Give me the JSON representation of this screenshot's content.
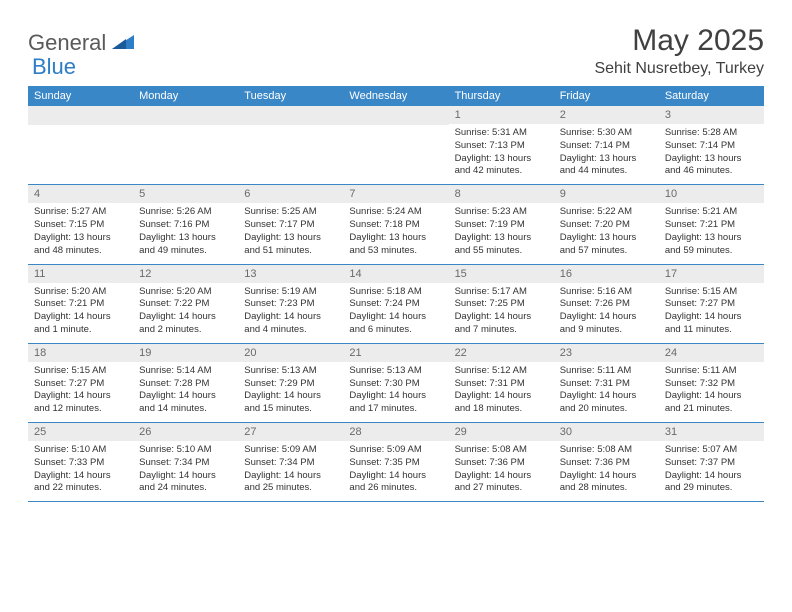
{
  "brand": {
    "part1": "General",
    "part2": "Blue"
  },
  "title": "May 2025",
  "location": "Sehit Nusretbey, Turkey",
  "colors": {
    "header_bg": "#3a87c8",
    "header_text": "#ffffff",
    "daynum_bg": "#ececec",
    "daynum_text": "#6a6a6a",
    "body_text": "#333333",
    "border": "#3a87c8",
    "logo_gray": "#5a5a5a",
    "logo_blue": "#2d7dc7"
  },
  "weekdays": [
    "Sunday",
    "Monday",
    "Tuesday",
    "Wednesday",
    "Thursday",
    "Friday",
    "Saturday"
  ],
  "weeks": [
    [
      null,
      null,
      null,
      null,
      {
        "n": "1",
        "sr": "5:31 AM",
        "ss": "7:13 PM",
        "dl": "13 hours and 42 minutes."
      },
      {
        "n": "2",
        "sr": "5:30 AM",
        "ss": "7:14 PM",
        "dl": "13 hours and 44 minutes."
      },
      {
        "n": "3",
        "sr": "5:28 AM",
        "ss": "7:14 PM",
        "dl": "13 hours and 46 minutes."
      }
    ],
    [
      {
        "n": "4",
        "sr": "5:27 AM",
        "ss": "7:15 PM",
        "dl": "13 hours and 48 minutes."
      },
      {
        "n": "5",
        "sr": "5:26 AM",
        "ss": "7:16 PM",
        "dl": "13 hours and 49 minutes."
      },
      {
        "n": "6",
        "sr": "5:25 AM",
        "ss": "7:17 PM",
        "dl": "13 hours and 51 minutes."
      },
      {
        "n": "7",
        "sr": "5:24 AM",
        "ss": "7:18 PM",
        "dl": "13 hours and 53 minutes."
      },
      {
        "n": "8",
        "sr": "5:23 AM",
        "ss": "7:19 PM",
        "dl": "13 hours and 55 minutes."
      },
      {
        "n": "9",
        "sr": "5:22 AM",
        "ss": "7:20 PM",
        "dl": "13 hours and 57 minutes."
      },
      {
        "n": "10",
        "sr": "5:21 AM",
        "ss": "7:21 PM",
        "dl": "13 hours and 59 minutes."
      }
    ],
    [
      {
        "n": "11",
        "sr": "5:20 AM",
        "ss": "7:21 PM",
        "dl": "14 hours and 1 minute."
      },
      {
        "n": "12",
        "sr": "5:20 AM",
        "ss": "7:22 PM",
        "dl": "14 hours and 2 minutes."
      },
      {
        "n": "13",
        "sr": "5:19 AM",
        "ss": "7:23 PM",
        "dl": "14 hours and 4 minutes."
      },
      {
        "n": "14",
        "sr": "5:18 AM",
        "ss": "7:24 PM",
        "dl": "14 hours and 6 minutes."
      },
      {
        "n": "15",
        "sr": "5:17 AM",
        "ss": "7:25 PM",
        "dl": "14 hours and 7 minutes."
      },
      {
        "n": "16",
        "sr": "5:16 AM",
        "ss": "7:26 PM",
        "dl": "14 hours and 9 minutes."
      },
      {
        "n": "17",
        "sr": "5:15 AM",
        "ss": "7:27 PM",
        "dl": "14 hours and 11 minutes."
      }
    ],
    [
      {
        "n": "18",
        "sr": "5:15 AM",
        "ss": "7:27 PM",
        "dl": "14 hours and 12 minutes."
      },
      {
        "n": "19",
        "sr": "5:14 AM",
        "ss": "7:28 PM",
        "dl": "14 hours and 14 minutes."
      },
      {
        "n": "20",
        "sr": "5:13 AM",
        "ss": "7:29 PM",
        "dl": "14 hours and 15 minutes."
      },
      {
        "n": "21",
        "sr": "5:13 AM",
        "ss": "7:30 PM",
        "dl": "14 hours and 17 minutes."
      },
      {
        "n": "22",
        "sr": "5:12 AM",
        "ss": "7:31 PM",
        "dl": "14 hours and 18 minutes."
      },
      {
        "n": "23",
        "sr": "5:11 AM",
        "ss": "7:31 PM",
        "dl": "14 hours and 20 minutes."
      },
      {
        "n": "24",
        "sr": "5:11 AM",
        "ss": "7:32 PM",
        "dl": "14 hours and 21 minutes."
      }
    ],
    [
      {
        "n": "25",
        "sr": "5:10 AM",
        "ss": "7:33 PM",
        "dl": "14 hours and 22 minutes."
      },
      {
        "n": "26",
        "sr": "5:10 AM",
        "ss": "7:34 PM",
        "dl": "14 hours and 24 minutes."
      },
      {
        "n": "27",
        "sr": "5:09 AM",
        "ss": "7:34 PM",
        "dl": "14 hours and 25 minutes."
      },
      {
        "n": "28",
        "sr": "5:09 AM",
        "ss": "7:35 PM",
        "dl": "14 hours and 26 minutes."
      },
      {
        "n": "29",
        "sr": "5:08 AM",
        "ss": "7:36 PM",
        "dl": "14 hours and 27 minutes."
      },
      {
        "n": "30",
        "sr": "5:08 AM",
        "ss": "7:36 PM",
        "dl": "14 hours and 28 minutes."
      },
      {
        "n": "31",
        "sr": "5:07 AM",
        "ss": "7:37 PM",
        "dl": "14 hours and 29 minutes."
      }
    ]
  ],
  "labels": {
    "sunrise": "Sunrise:",
    "sunset": "Sunset:",
    "daylight": "Daylight:"
  }
}
